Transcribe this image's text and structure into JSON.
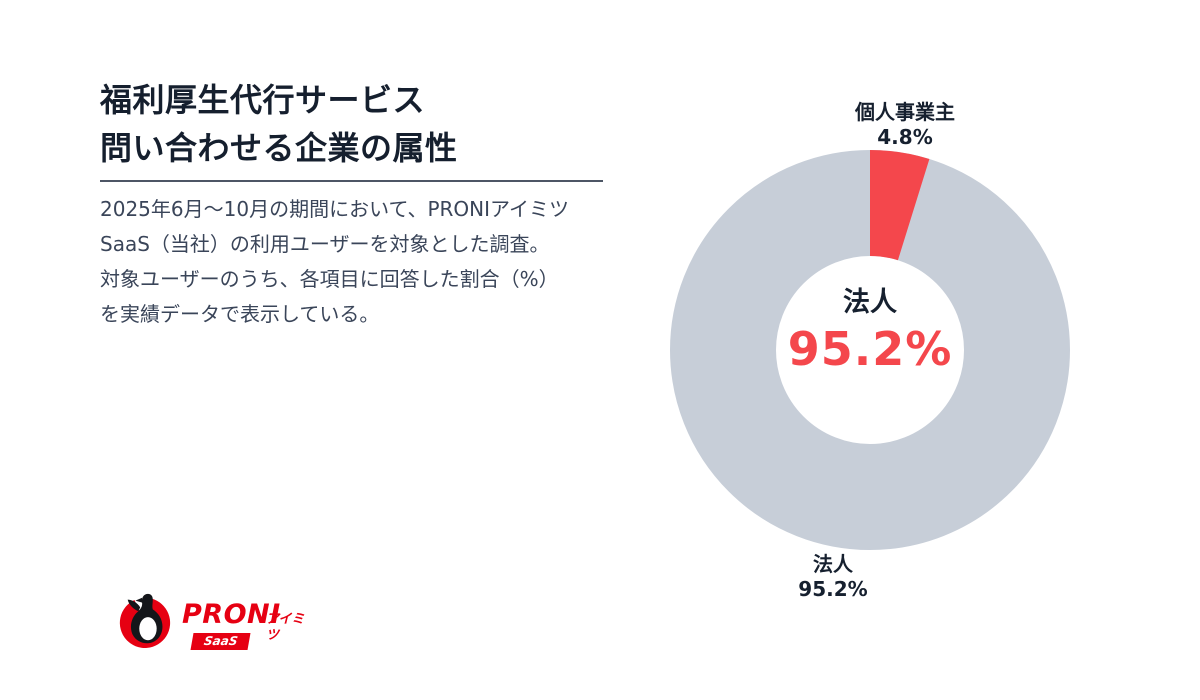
{
  "page": {
    "background": "#FFFFFF"
  },
  "header": {
    "title_lines": [
      "福利厚生代行サービス",
      "問い合わせる企業の属性"
    ],
    "description_lines": [
      "2025年6月〜10月の期間において、PRONIアイミツ",
      "SaaS（当社）の利用ユーザーを対象とした調査。",
      "対象ユーザーのうち、各項目に回答した割合（%）",
      "を実績データで表示している。"
    ]
  },
  "chart_data": {
    "type": "pie",
    "variant": "donut",
    "categories": [
      "個人事業主",
      "法人"
    ],
    "values": [
      4.8,
      95.2
    ],
    "unit": "%",
    "colors": [
      "#F4474C",
      "#C7CED8"
    ],
    "start_angle_deg": 0,
    "direction": "clockwise",
    "inner_radius_ratio": 0.47,
    "center_label": {
      "category": "法人",
      "value_text": "95.2%"
    },
    "outer_labels": [
      {
        "category": "個人事業主",
        "value_text": "4.8%",
        "position": "top"
      },
      {
        "category": "法人",
        "value_text": "95.2%",
        "position": "bottom"
      }
    ]
  },
  "logo": {
    "brand": "PRONI",
    "brand_sub": "アイミツ",
    "badge": "SaaS",
    "brand_color": "#E60012"
  }
}
